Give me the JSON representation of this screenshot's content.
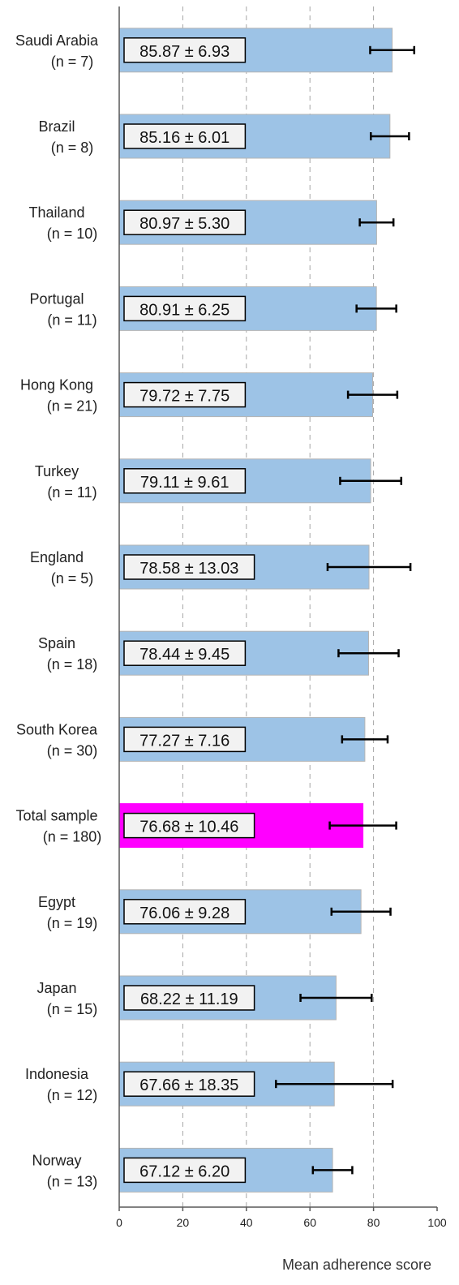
{
  "chart_data": {
    "type": "bar",
    "orientation": "horizontal",
    "xlabel": "Mean adherence score",
    "xlim": [
      0,
      100
    ],
    "xticks": [
      "0",
      "20",
      "40",
      "60",
      "80",
      "100"
    ],
    "grid": "vertical dashed",
    "categories": [
      {
        "name": "Saudi Arabia",
        "n": "(n = 7)",
        "mean": 85.87,
        "sd": 6.93,
        "label": "85.87 ± 6.93",
        "highlight": false
      },
      {
        "name": "Brazil",
        "n": "(n = 8)",
        "mean": 85.16,
        "sd": 6.01,
        "label": "85.16 ± 6.01",
        "highlight": false
      },
      {
        "name": "Thailand",
        "n": "(n = 10)",
        "mean": 80.97,
        "sd": 5.3,
        "label": "80.97 ± 5.30",
        "highlight": false
      },
      {
        "name": "Portugal",
        "n": "(n = 11)",
        "mean": 80.91,
        "sd": 6.25,
        "label": "80.91 ± 6.25",
        "highlight": false
      },
      {
        "name": "Hong Kong",
        "n": "(n = 21)",
        "mean": 79.72,
        "sd": 7.75,
        "label": "79.72 ± 7.75",
        "highlight": false
      },
      {
        "name": "Turkey",
        "n": "(n = 11)",
        "mean": 79.11,
        "sd": 9.61,
        "label": "79.11 ± 9.61",
        "highlight": false
      },
      {
        "name": "England",
        "n": "(n = 5)",
        "mean": 78.58,
        "sd": 13.03,
        "label": "78.58 ± 13.03",
        "highlight": false
      },
      {
        "name": "Spain",
        "n": "(n = 18)",
        "mean": 78.44,
        "sd": 9.45,
        "label": "78.44 ± 9.45",
        "highlight": false
      },
      {
        "name": "South Korea",
        "n": "(n = 30)",
        "mean": 77.27,
        "sd": 7.16,
        "label": "77.27 ± 7.16",
        "highlight": false
      },
      {
        "name": "Total sample",
        "n": "(n = 180)",
        "mean": 76.68,
        "sd": 10.46,
        "label": "76.68 ± 10.46",
        "highlight": true
      },
      {
        "name": "Egypt",
        "n": "(n = 19)",
        "mean": 76.06,
        "sd": 9.28,
        "label": "76.06 ± 9.28",
        "highlight": false
      },
      {
        "name": "Japan",
        "n": "(n = 15)",
        "mean": 68.22,
        "sd": 11.19,
        "label": "68.22 ± 11.19",
        "highlight": false
      },
      {
        "name": "Indonesia",
        "n": "(n = 12)",
        "mean": 67.66,
        "sd": 18.35,
        "label": "67.66 ± 18.35",
        "highlight": false
      },
      {
        "name": "Norway",
        "n": "(n = 13)",
        "mean": 67.12,
        "sd": 6.2,
        "label": "67.12 ± 6.20",
        "highlight": false
      }
    ],
    "colors": {
      "bar": "#9dc3e6",
      "bar_border": "#b4b4b4",
      "highlight_bar": "#ff00ff",
      "error_bar": "#000000",
      "gridline": "#a6a6a6",
      "label_box_fill": "#f2f2f2",
      "label_box_border": "#000000"
    }
  }
}
